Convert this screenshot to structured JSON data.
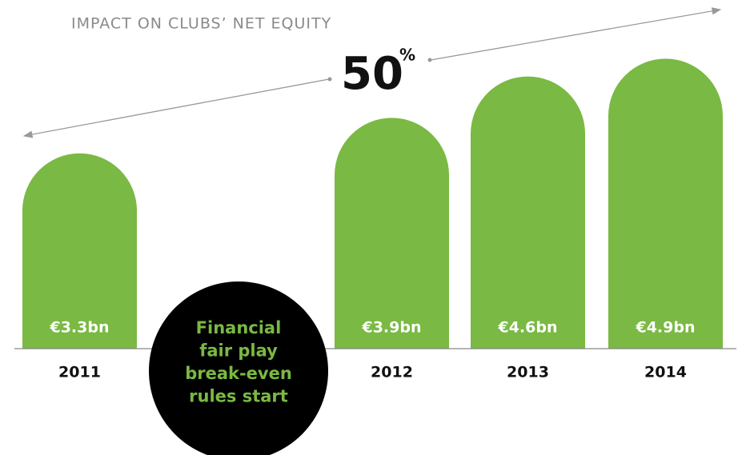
{
  "chart_data": {
    "type": "bar",
    "title": "IMPACT ON CLUBS’ NET EQUITY",
    "categories": [
      "2011",
      "2012",
      "2013",
      "2014"
    ],
    "values": [
      3.3,
      3.9,
      4.6,
      4.9
    ],
    "value_labels": [
      "€3.3bn",
      "€3.9bn",
      "€4.6bn",
      "€4.9bn"
    ],
    "color": "#7ab943",
    "growth_label": "50",
    "growth_unit": "%",
    "annotation": [
      "Financial",
      "fair play",
      "break-even",
      "rules start"
    ]
  }
}
